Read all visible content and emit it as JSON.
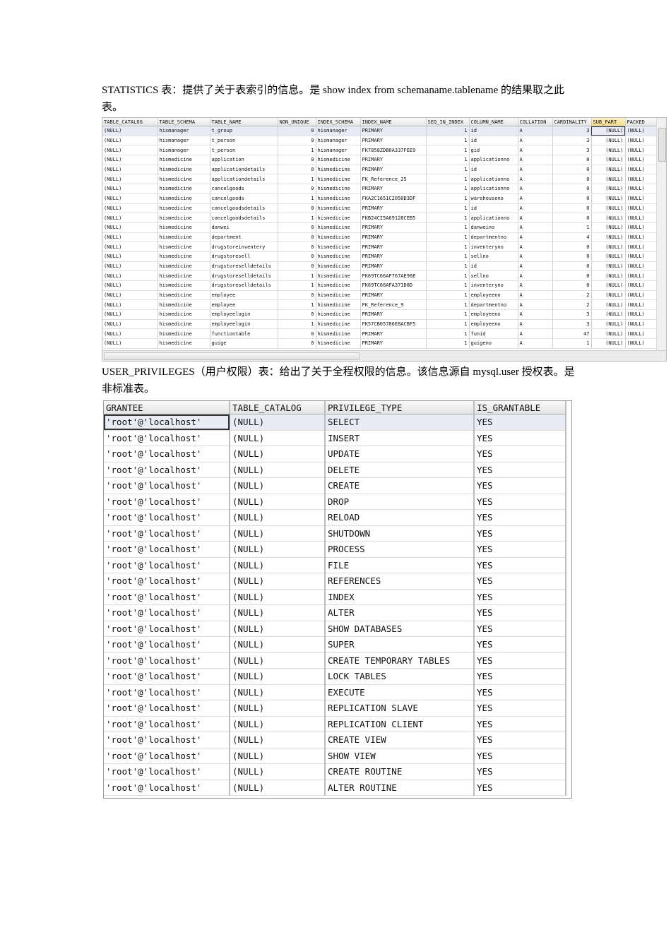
{
  "para1": "STATISTICS 表：提供了关于表索引的信息。是 show index from schemaname.tablename 的结果取之此表。",
  "statistics": {
    "columns": [
      "TABLE_CATALOG",
      "TABLE_SCHEMA",
      "TABLE_NAME",
      "NON_UNIQUE",
      "INDEX_SCHEMA",
      "INDEX_NAME",
      "SEQ_IN_INDEX",
      "COLUMN_NAME",
      "COLLATION",
      "CARDINALITY",
      "SUB_PART",
      "PACKED"
    ],
    "rows": [
      [
        "(NULL)",
        "hismanager",
        "t_group",
        "0",
        "hismanager",
        "PRIMARY",
        "1",
        "id",
        "A",
        "3",
        "(NULL)",
        "(NULL)"
      ],
      [
        "(NULL)",
        "hismanager",
        "t_person",
        "0",
        "hismanager",
        "PRIMARY",
        "1",
        "id",
        "A",
        "3",
        "(NULL)",
        "(NULL)"
      ],
      [
        "(NULL)",
        "hismanager",
        "t_person",
        "1",
        "hismanager",
        "FK7858ZDB0A337FEE9",
        "1",
        "gid",
        "A",
        "3",
        "(NULL)",
        "(NULL)"
      ],
      [
        "(NULL)",
        "hismedicine",
        "application",
        "0",
        "hismedicine",
        "PRIMARY",
        "1",
        "applicationno",
        "A",
        "0",
        "(NULL)",
        "(NULL)"
      ],
      [
        "(NULL)",
        "hismedicine",
        "applicationdetails",
        "0",
        "hismedicine",
        "PRIMARY",
        "1",
        "id",
        "A",
        "0",
        "(NULL)",
        "(NULL)"
      ],
      [
        "(NULL)",
        "hismedicine",
        "applicationdetails",
        "1",
        "hismedicine",
        "FK_Reference_25",
        "1",
        "applicationno",
        "A",
        "0",
        "(NULL)",
        "(NULL)"
      ],
      [
        "(NULL)",
        "hismedicine",
        "cancelgoods",
        "0",
        "hismedicine",
        "PRIMARY",
        "1",
        "applicationno",
        "A",
        "0",
        "(NULL)",
        "(NULL)"
      ],
      [
        "(NULL)",
        "hismedicine",
        "cancelgoods",
        "1",
        "hismedicine",
        "FKA2C1651C2050D3DF",
        "1",
        "warehouseno",
        "A",
        "0",
        "(NULL)",
        "(NULL)"
      ],
      [
        "(NULL)",
        "hismedicine",
        "cancelgoodsdetails",
        "0",
        "hismedicine",
        "PRIMARY",
        "1",
        "id",
        "A",
        "0",
        "(NULL)",
        "(NULL)"
      ],
      [
        "(NULL)",
        "hismedicine",
        "cancelgoodsdetails",
        "1",
        "hismedicine",
        "FKB24CI5A69128CEB5",
        "1",
        "applicationno",
        "A",
        "0",
        "(NULL)",
        "(NULL)"
      ],
      [
        "(NULL)",
        "hismedicine",
        "danwei",
        "0",
        "hismedicine",
        "PRIMARY",
        "1",
        "danweino",
        "A",
        "1",
        "(NULL)",
        "(NULL)"
      ],
      [
        "(NULL)",
        "hismedicine",
        "department",
        "0",
        "hismedicine",
        "PRIMARY",
        "1",
        "departmentno",
        "A",
        "4",
        "(NULL)",
        "(NULL)"
      ],
      [
        "(NULL)",
        "hismedicine",
        "drugstoreinventery",
        "0",
        "hismedicine",
        "PRIMARY",
        "1",
        "inventeryno",
        "A",
        "0",
        "(NULL)",
        "(NULL)"
      ],
      [
        "(NULL)",
        "hismedicine",
        "drugstoresell",
        "0",
        "hismedicine",
        "PRIMARY",
        "1",
        "sellno",
        "A",
        "0",
        "(NULL)",
        "(NULL)"
      ],
      [
        "(NULL)",
        "hismedicine",
        "drugstoreselldetails",
        "0",
        "hismedicine",
        "PRIMARY",
        "1",
        "id",
        "A",
        "0",
        "(NULL)",
        "(NULL)"
      ],
      [
        "(NULL)",
        "hismedicine",
        "drugstoreselldetails",
        "1",
        "hismedicine",
        "FK69TC66AF767AE96E",
        "1",
        "sellno",
        "A",
        "0",
        "(NULL)",
        "(NULL)"
      ],
      [
        "(NULL)",
        "hismedicine",
        "drugstoreselldetails",
        "1",
        "hismedicine",
        "FK69TC66AFA371D8D",
        "1",
        "inventeryno",
        "A",
        "0",
        "(NULL)",
        "(NULL)"
      ],
      [
        "(NULL)",
        "hismedicine",
        "employee",
        "0",
        "hismedicine",
        "PRIMARY",
        "1",
        "employeeno",
        "A",
        "2",
        "(NULL)",
        "(NULL)"
      ],
      [
        "(NULL)",
        "hismedicine",
        "employee",
        "1",
        "hismedicine",
        "FK_Reference_9",
        "1",
        "departmentno",
        "A",
        "2",
        "(NULL)",
        "(NULL)"
      ],
      [
        "(NULL)",
        "hismedicine",
        "employeelogin",
        "0",
        "hismedicine",
        "PRIMARY",
        "1",
        "employeeno",
        "A",
        "3",
        "(NULL)",
        "(NULL)"
      ],
      [
        "(NULL)",
        "hismedicine",
        "employeelogin",
        "1",
        "hismedicine",
        "FK57CB05786E8ACBF5",
        "1",
        "employeeno",
        "A",
        "3",
        "(NULL)",
        "(NULL)"
      ],
      [
        "(NULL)",
        "hismedicine",
        "functiontable",
        "0",
        "hismedicine",
        "PRIMARY",
        "1",
        "funid",
        "A",
        "47",
        "(NULL)",
        "(NULL)"
      ],
      [
        "(NULL)",
        "hismedicine",
        "guige",
        "0",
        "hismedicine",
        "PRIMARY",
        "1",
        "guigeno",
        "A",
        "1",
        "(NULL)",
        "(NULL)"
      ]
    ]
  },
  "para2": "USER_PRIVILEGES（用户权限）表：给出了关于全程权限的信息。该信息源自 mysql.user 授权表。是非标准表。",
  "user_privileges": {
    "columns": [
      "GRANTEE",
      "TABLE_CATALOG",
      "PRIVILEGE_TYPE",
      "IS_GRANTABLE"
    ],
    "grantee": "'root'@'localhost'",
    "catalog": "(NULL)",
    "grantable": "YES",
    "privileges": [
      "SELECT",
      "INSERT",
      "UPDATE",
      "DELETE",
      "CREATE",
      "DROP",
      "RELOAD",
      "SHUTDOWN",
      "PROCESS",
      "FILE",
      "REFERENCES",
      "INDEX",
      "ALTER",
      "SHOW DATABASES",
      "SUPER",
      "CREATE TEMPORARY TABLES",
      "LOCK TABLES",
      "EXECUTE",
      "REPLICATION SLAVE",
      "REPLICATION CLIENT",
      "CREATE VIEW",
      "SHOW VIEW",
      "CREATE ROUTINE",
      "ALTER ROUTINE"
    ]
  }
}
